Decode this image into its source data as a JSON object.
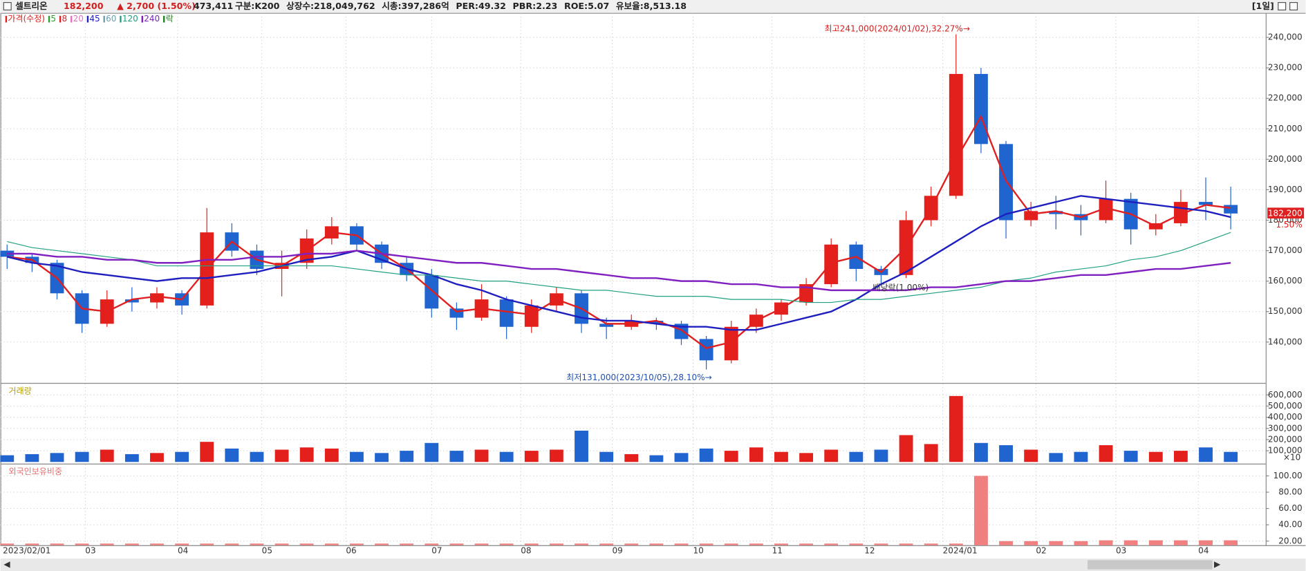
{
  "header": {
    "name": "셀트리온",
    "price": "182,200",
    "change": "▲ 2,700 (1.50%)",
    "volume": "473,411",
    "items": [
      "구분:K200",
      "상장수:218,049,762",
      "시총:397,286억",
      "PER:49.32",
      "PBR:2.23",
      "ROE:5.07",
      "유보율:8,513.18"
    ],
    "period": "[1일]"
  },
  "chart_data": [
    {
      "type": "candlestick",
      "legend": [
        {
          "label": "가격(수정)",
          "color": "#e02020"
        },
        {
          "label": "5",
          "color": "#2ca02c"
        },
        {
          "label": "8",
          "color": "#e02020"
        },
        {
          "label": "20",
          "color": "#e070c0"
        },
        {
          "label": "45",
          "color": "#1f1fc0"
        },
        {
          "label": "60",
          "color": "#6a9fb0"
        },
        {
          "label": "120",
          "color": "#20a080"
        },
        {
          "label": "240",
          "color": "#8020c0"
        },
        {
          "label": "락",
          "color": "#208020"
        }
      ],
      "up_color": "#e4201c",
      "down_color": "#2064d0",
      "open": [
        170000,
        168000,
        166000,
        156000,
        146000,
        154000,
        153000,
        156000,
        152000,
        176000,
        170000,
        164000,
        166000,
        174000,
        178000,
        172000,
        166000,
        162000,
        151000,
        148000,
        154000,
        145000,
        152000,
        156000,
        146000,
        145000,
        147000,
        146000,
        141000,
        134000,
        145000,
        149000,
        153000,
        159000,
        172000,
        164000,
        162000,
        180000,
        188000,
        228000,
        205000,
        180000,
        183000,
        182000,
        180000,
        187000,
        177000,
        179000,
        186000,
        185000
      ],
      "high": [
        172000,
        169000,
        167000,
        157000,
        157000,
        158000,
        158000,
        157000,
        184000,
        179000,
        172000,
        170000,
        177000,
        181000,
        179000,
        173000,
        168000,
        164000,
        153000,
        159000,
        155000,
        154000,
        158000,
        157000,
        148000,
        149000,
        148000,
        147000,
        142000,
        147000,
        151000,
        154000,
        161000,
        174000,
        173000,
        165000,
        183000,
        191000,
        241000,
        230000,
        206000,
        186000,
        188000,
        185000,
        193000,
        189000,
        182000,
        190000,
        194000,
        191000
      ],
      "low": [
        164000,
        163000,
        154000,
        143000,
        145000,
        150000,
        151000,
        149000,
        151000,
        168000,
        162000,
        155000,
        164000,
        172000,
        170000,
        164000,
        160000,
        148000,
        144000,
        147000,
        141000,
        143000,
        150000,
        143000,
        141000,
        144000,
        144000,
        139000,
        131000,
        133000,
        143000,
        147000,
        152000,
        158000,
        160000,
        159000,
        161000,
        178000,
        187000,
        202000,
        174000,
        178000,
        177000,
        175000,
        179000,
        172000,
        175000,
        178000,
        180000,
        177000
      ],
      "close": [
        168000,
        166000,
        156000,
        146000,
        154000,
        153000,
        156000,
        152000,
        176000,
        170000,
        164000,
        166000,
        174000,
        178000,
        172000,
        166000,
        162000,
        151000,
        148000,
        154000,
        145000,
        152000,
        156000,
        146000,
        145000,
        147000,
        146000,
        141000,
        134000,
        145000,
        149000,
        153000,
        159000,
        172000,
        164000,
        162000,
        180000,
        188000,
        228000,
        205000,
        180000,
        183000,
        182000,
        180000,
        187000,
        177000,
        179000,
        186000,
        185000,
        182200
      ],
      "moving_averages": [
        {
          "name": "8",
          "color": "#e02020",
          "width": 2,
          "values": [
            168000,
            167000,
            161000,
            151000,
            150000,
            154000,
            155000,
            154000,
            164000,
            173000,
            167000,
            165000,
            170000,
            176000,
            175000,
            169000,
            164000,
            157000,
            150000,
            151000,
            150000,
            149000,
            154000,
            151000,
            146000,
            146000,
            147000,
            144000,
            138000,
            140000,
            147000,
            151000,
            156000,
            166000,
            168000,
            163000,
            171000,
            184000,
            200000,
            214000,
            193000,
            182000,
            183000,
            181000,
            184000,
            182000,
            178000,
            182000,
            185000,
            184000
          ]
        },
        {
          "name": "45",
          "color": "#1f1fc0",
          "width": 2,
          "values": [
            168000,
            166000,
            165000,
            163000,
            162000,
            161000,
            160000,
            161000,
            161000,
            162000,
            163000,
            165000,
            167000,
            168000,
            170000,
            167000,
            164000,
            162000,
            159000,
            157000,
            154000,
            152000,
            150000,
            148000,
            147000,
            147000,
            146000,
            145000,
            145000,
            144000,
            144000,
            146000,
            148000,
            150000,
            154000,
            159000,
            163000,
            168000,
            173000,
            178000,
            182000,
            184000,
            186000,
            188000,
            187000,
            186000,
            185000,
            184000,
            183000,
            181000
          ]
        },
        {
          "name": "120",
          "color": "#20a080",
          "width": 1,
          "values": [
            173000,
            171000,
            170000,
            169000,
            168000,
            167000,
            165000,
            165000,
            165000,
            165000,
            165000,
            165000,
            165000,
            165000,
            164000,
            163000,
            162000,
            162000,
            161000,
            160000,
            160000,
            159000,
            158000,
            157000,
            157000,
            156000,
            155000,
            155000,
            155000,
            154000,
            154000,
            154000,
            153000,
            153000,
            154000,
            154000,
            155000,
            156000,
            157000,
            158000,
            160000,
            161000,
            163000,
            164000,
            165000,
            167000,
            168000,
            170000,
            173000,
            176000
          ]
        },
        {
          "name": "240",
          "color": "#8020c0",
          "width": 2,
          "values": [
            169000,
            169000,
            168000,
            168000,
            167000,
            167000,
            166000,
            166000,
            167000,
            167000,
            168000,
            168000,
            169000,
            169000,
            170000,
            169000,
            168000,
            167000,
            166000,
            166000,
            165000,
            164000,
            164000,
            163000,
            162000,
            161000,
            161000,
            160000,
            160000,
            159000,
            159000,
            158000,
            158000,
            157000,
            157000,
            157000,
            157000,
            158000,
            158000,
            159000,
            160000,
            160000,
            161000,
            162000,
            162000,
            163000,
            164000,
            164000,
            165000,
            166000
          ]
        }
      ],
      "annotations": {
        "high": "최고241,000(2024/01/02),32.27%→",
        "low": "최저131,000(2023/10/05),28.10%→",
        "dividend": "배당락(1.00%)"
      },
      "last_price": {
        "value": 182200,
        "label": "182,200"
      },
      "last_change": "1.50%",
      "ylim": [
        126600,
        247900
      ],
      "yticks": [
        {
          "value": 140000,
          "label": "140,000"
        },
        {
          "value": 150000,
          "label": "150,000"
        },
        {
          "value": 160000,
          "label": "160,000"
        },
        {
          "value": 170000,
          "label": "170,000"
        },
        {
          "value": 180000,
          "label": "180,000"
        },
        {
          "value": 190000,
          "label": "190,000"
        },
        {
          "value": 200000,
          "label": "200,000"
        },
        {
          "value": 210000,
          "label": "210,000"
        },
        {
          "value": 220000,
          "label": "220,000"
        },
        {
          "value": 230000,
          "label": "230,000"
        },
        {
          "value": 240000,
          "label": "240,000"
        }
      ],
      "xlim": [
        -0.27,
        50.4
      ],
      "xticks": [
        {
          "value": -0.23,
          "label": "2023/02/01"
        },
        {
          "value": 3.13,
          "label": "03"
        },
        {
          "value": 6.83,
          "label": "04"
        },
        {
          "value": 10.2,
          "label": "05"
        },
        {
          "value": 13.57,
          "label": "06"
        },
        {
          "value": 17,
          "label": "07"
        },
        {
          "value": 20.57,
          "label": "08"
        },
        {
          "value": 24.23,
          "label": "09"
        },
        {
          "value": 27.47,
          "label": "10"
        },
        {
          "value": 30.63,
          "label": "11"
        },
        {
          "value": 34.33,
          "label": "12"
        },
        {
          "value": 37.47,
          "label": "2024/01"
        },
        {
          "value": 41.2,
          "label": "02"
        },
        {
          "value": 44.4,
          "label": "03"
        },
        {
          "value": 47.7,
          "label": "04"
        }
      ]
    },
    {
      "type": "volume",
      "title": "거래량",
      "unit_label": "×10",
      "title_color": "#b8a000",
      "values": [
        60000,
        70000,
        80000,
        90000,
        110000,
        70000,
        80000,
        90000,
        180000,
        120000,
        90000,
        110000,
        130000,
        120000,
        90000,
        80000,
        100000,
        170000,
        100000,
        110000,
        90000,
        100000,
        110000,
        280000,
        90000,
        70000,
        60000,
        80000,
        120000,
        100000,
        130000,
        90000,
        80000,
        110000,
        90000,
        110000,
        240000,
        160000,
        590000,
        170000,
        150000,
        110000,
        80000,
        90000,
        150000,
        100000,
        90000,
        100000,
        130000,
        90000
      ],
      "ylim": [
        0,
        700000
      ],
      "yticks": [
        {
          "value": 100000,
          "label": "100,000"
        },
        {
          "value": 200000,
          "label": "200,000"
        },
        {
          "value": 300000,
          "label": "300,000"
        },
        {
          "value": 400000,
          "label": "400,000"
        },
        {
          "value": 500000,
          "label": "500,000"
        },
        {
          "value": 600000,
          "label": "600,000"
        }
      ]
    },
    {
      "type": "bar",
      "title": "외국인보유비중",
      "title_color": "#e07070",
      "color": "#f08080",
      "values": [
        17,
        17,
        17,
        17,
        17,
        17,
        17,
        17,
        17,
        17,
        17,
        17,
        17,
        17,
        17,
        17,
        17,
        17,
        17,
        17,
        17,
        17,
        17,
        17,
        17,
        17,
        17,
        17,
        17,
        17,
        17,
        17,
        17,
        17,
        17,
        17,
        17,
        17,
        17,
        100,
        20,
        20,
        20,
        20,
        21,
        21,
        21,
        21,
        21,
        21
      ],
      "ylim": [
        15,
        114
      ],
      "yticks": [
        {
          "value": 20,
          "label": "20.00"
        },
        {
          "value": 40,
          "label": "40.00"
        },
        {
          "value": 60,
          "label": "60.00"
        },
        {
          "value": 80,
          "label": "80.00"
        },
        {
          "value": 100,
          "label": "100.00"
        }
      ]
    }
  ]
}
